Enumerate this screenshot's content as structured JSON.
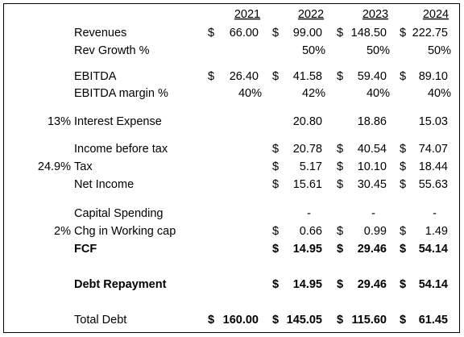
{
  "years": [
    "2021",
    "2022",
    "2023",
    "2024"
  ],
  "rows": [
    {
      "label": "Revenues",
      "cells": [
        {
          "sign": "$",
          "value": "66.00"
        },
        {
          "sign": "$",
          "value": "99.00"
        },
        {
          "sign": "$",
          "value": "148.50"
        },
        {
          "sign": "$",
          "value": "222.75"
        }
      ]
    },
    {
      "label": "Rev Growth %",
      "cells": [
        null,
        {
          "value": "50%"
        },
        {
          "value": "50%"
        },
        {
          "value": "50%"
        }
      ]
    },
    {
      "label": "EBITDA",
      "cells": [
        {
          "sign": "$",
          "value": "26.40"
        },
        {
          "sign": "$",
          "value": "41.58"
        },
        {
          "sign": "$",
          "value": "59.40"
        },
        {
          "sign": "$",
          "value": "89.10"
        }
      ]
    },
    {
      "label": "EBITDA margin %",
      "cells": [
        {
          "value": "40%"
        },
        {
          "value": "42%"
        },
        {
          "value": "40%"
        },
        {
          "value": "40%"
        }
      ]
    },
    {
      "note": "13%",
      "label": "Interest Expense",
      "cells": [
        null,
        {
          "value": "20.80"
        },
        {
          "value": "18.86"
        },
        {
          "value": "15.03"
        }
      ]
    },
    {
      "label": "Income before tax",
      "cells": [
        null,
        {
          "sign": "$",
          "value": "20.78"
        },
        {
          "sign": "$",
          "value": "40.54"
        },
        {
          "sign": "$",
          "value": "74.07"
        }
      ]
    },
    {
      "note": "24.9%",
      "label": "Tax",
      "cells": [
        null,
        {
          "sign": "$",
          "value": "5.17"
        },
        {
          "sign": "$",
          "value": "10.10"
        },
        {
          "sign": "$",
          "value": "18.44"
        }
      ]
    },
    {
      "label": "Net Income",
      "cells": [
        null,
        {
          "sign": "$",
          "value": "15.61"
        },
        {
          "sign": "$",
          "value": "30.45"
        },
        {
          "sign": "$",
          "value": "55.63"
        }
      ]
    },
    {
      "label": "Capital Spending",
      "cells": [
        null,
        {
          "value": "-"
        },
        {
          "value": "-"
        },
        {
          "value": "-"
        }
      ]
    },
    {
      "note": "2%",
      "label": "Chg in Working cap",
      "cells": [
        null,
        {
          "sign": "$",
          "value": "0.66"
        },
        {
          "sign": "$",
          "value": "0.99"
        },
        {
          "sign": "$",
          "value": "1.49"
        }
      ]
    },
    {
      "label": "FCF",
      "cells": [
        null,
        {
          "sign": "$",
          "value": "14.95"
        },
        {
          "sign": "$",
          "value": "29.46"
        },
        {
          "sign": "$",
          "value": "54.14"
        }
      ]
    },
    {
      "label": "Debt Repayment",
      "cells": [
        null,
        {
          "sign": "$",
          "value": "14.95"
        },
        {
          "sign": "$",
          "value": "29.46"
        },
        {
          "sign": "$",
          "value": "54.14"
        }
      ]
    },
    {
      "label": "Total Debt",
      "cells": [
        {
          "sign": "$",
          "value": "160.00"
        },
        {
          "sign": "$",
          "value": "145.05"
        },
        {
          "sign": "$",
          "value": "115.60"
        },
        {
          "sign": "$",
          "value": "61.45"
        }
      ]
    }
  ]
}
